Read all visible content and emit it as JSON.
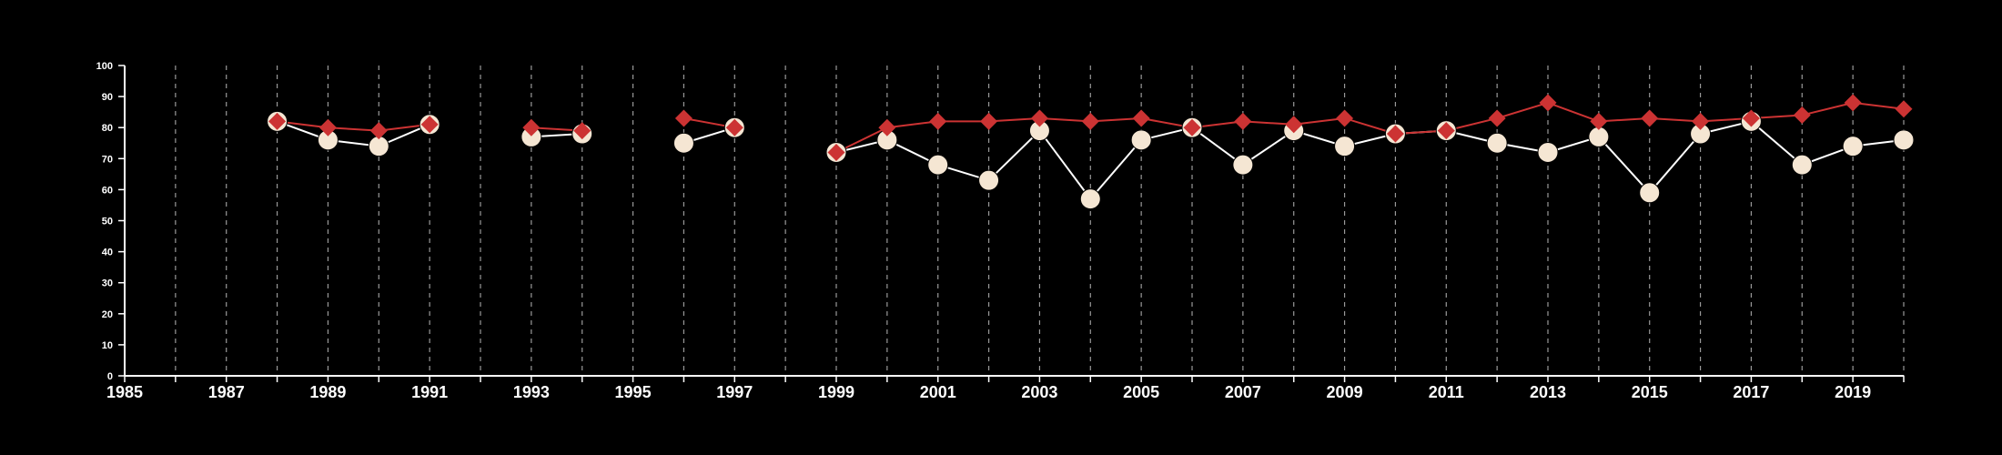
{
  "chart_data": {
    "type": "line",
    "title": "",
    "xlabel": "",
    "ylabel": "",
    "xlim": [
      1985,
      2020
    ],
    "ylim": [
      0,
      100
    ],
    "x_ticks_labeled": [
      1985,
      1987,
      1989,
      1991,
      1993,
      1995,
      1997,
      1999,
      2001,
      2003,
      2005,
      2007,
      2009,
      2011,
      2013,
      2015,
      2017,
      2019
    ],
    "y_ticks": [
      0,
      10,
      20,
      30,
      40,
      50,
      60,
      70,
      80,
      90,
      100
    ],
    "grid": "vertical dashed lines at each year",
    "legend": "none",
    "series": [
      {
        "marker": "circle",
        "color": "#f5e6d3",
        "line_color": "#ffffff",
        "points": [
          [
            1988,
            82
          ],
          [
            1989,
            76
          ],
          [
            1990,
            74
          ],
          [
            1991,
            81
          ],
          [
            1993,
            77
          ],
          [
            1994,
            78
          ],
          [
            1996,
            75
          ],
          [
            1997,
            80
          ],
          [
            1999,
            72
          ],
          [
            2000,
            76
          ],
          [
            2001,
            68
          ],
          [
            2002,
            63
          ],
          [
            2003,
            79
          ],
          [
            2004,
            57
          ],
          [
            2005,
            76
          ],
          [
            2006,
            80
          ],
          [
            2007,
            68
          ],
          [
            2008,
            79
          ],
          [
            2009,
            74
          ],
          [
            2010,
            78
          ],
          [
            2011,
            79
          ],
          [
            2012,
            75
          ],
          [
            2013,
            72
          ],
          [
            2014,
            77
          ],
          [
            2015,
            59
          ],
          [
            2016,
            78
          ],
          [
            2017,
            82
          ],
          [
            2018,
            68
          ],
          [
            2019,
            74
          ],
          [
            2020,
            76
          ]
        ]
      },
      {
        "marker": "diamond",
        "color": "#cc3333",
        "line_color": "#cc3333",
        "points": [
          [
            1988,
            82
          ],
          [
            1989,
            80
          ],
          [
            1990,
            79
          ],
          [
            1991,
            81
          ],
          [
            1993,
            80
          ],
          [
            1994,
            79
          ],
          [
            1996,
            83
          ],
          [
            1997,
            80
          ],
          [
            1999,
            72
          ],
          [
            2000,
            80
          ],
          [
            2001,
            82
          ],
          [
            2002,
            82
          ],
          [
            2003,
            83
          ],
          [
            2004,
            82
          ],
          [
            2005,
            83
          ],
          [
            2006,
            80
          ],
          [
            2007,
            82
          ],
          [
            2008,
            81
          ],
          [
            2009,
            83
          ],
          [
            2010,
            78
          ],
          [
            2011,
            79
          ],
          [
            2012,
            83
          ],
          [
            2013,
            88
          ],
          [
            2014,
            82
          ],
          [
            2015,
            83
          ],
          [
            2016,
            82
          ],
          [
            2017,
            83
          ],
          [
            2018,
            84
          ],
          [
            2019,
            88
          ],
          [
            2020,
            86
          ]
        ]
      }
    ]
  }
}
